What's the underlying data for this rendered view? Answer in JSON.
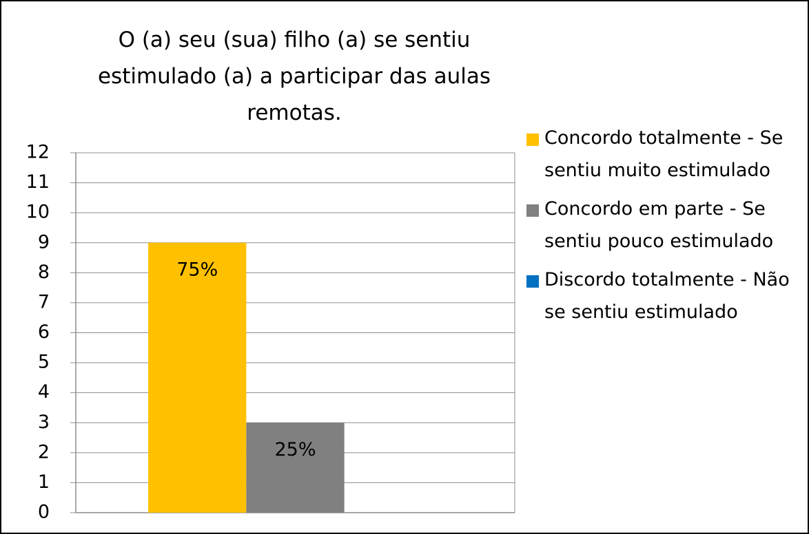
{
  "chart_data": {
    "type": "bar",
    "title": "O (a) seu (sua) filho (a) se sentiu estimulado (a) a participar das aulas remotas.",
    "categories": [
      null
    ],
    "series": [
      {
        "name": "Concordo totalmente - Se sentiu muito estimulado",
        "color": "#ffc000",
        "values": [
          9
        ]
      },
      {
        "name": "Concordo em parte - Se sentiu pouco estimulado",
        "color": "#808080",
        "values": [
          3
        ]
      },
      {
        "name": "Discordo totalmente - Não se sentiu estimulado",
        "color": "#0070c0",
        "values": [
          0
        ]
      }
    ],
    "annotations": [
      "75%",
      "25%"
    ],
    "ylim": [
      0,
      12
    ],
    "yticks": [
      0,
      1,
      2,
      3,
      4,
      5,
      6,
      7,
      8,
      9,
      10,
      11,
      12
    ],
    "grid": true,
    "legend": "right"
  }
}
